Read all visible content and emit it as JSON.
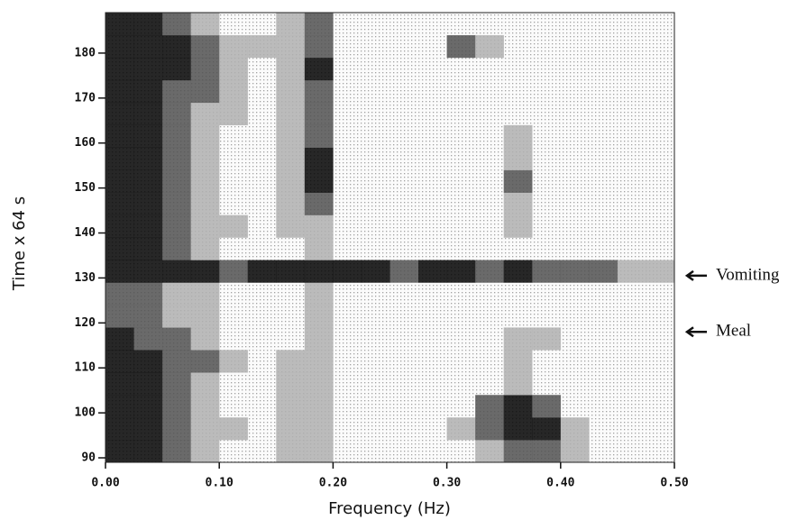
{
  "chart_data": {
    "type": "heatmap",
    "xlabel": "Frequency (Hz)",
    "ylabel": "Time x 64 s",
    "xlim": [
      0,
      0.5
    ],
    "ylim": [
      89,
      189
    ],
    "xticks": [
      {
        "value": 0,
        "label": "0.00"
      },
      {
        "value": 0.1,
        "label": "0.10"
      },
      {
        "value": 0.2,
        "label": "0.20"
      },
      {
        "value": 0.3,
        "label": "0.30"
      },
      {
        "value": 0.4,
        "label": "0.40"
      },
      {
        "value": 0.5,
        "label": "0.50"
      }
    ],
    "yticks": [
      90,
      100,
      110,
      120,
      130,
      140,
      150,
      160,
      170,
      180
    ],
    "x_bins": [
      0,
      0.025,
      0.05,
      0.075,
      0.1,
      0.125,
      0.15,
      0.175,
      0.2,
      0.225,
      0.25,
      0.275,
      0.3,
      0.325,
      0.35,
      0.375,
      0.4,
      0.425,
      0.45,
      0.475,
      0.5
    ],
    "y_bins": [
      89,
      94,
      99,
      104,
      109,
      114,
      119,
      124,
      129,
      134,
      139,
      144,
      149,
      154,
      159,
      164,
      169,
      174,
      179,
      184,
      189
    ],
    "colors": [
      "#f4f4f4",
      "#b4b4b4",
      "#5a5a5a",
      "#101010"
    ],
    "z": [
      [
        3,
        3,
        2,
        1,
        0,
        0,
        1,
        1,
        0,
        0,
        0,
        0,
        0,
        1,
        2,
        2,
        1,
        0,
        0,
        0
      ],
      [
        3,
        3,
        2,
        1,
        1,
        0,
        1,
        1,
        0,
        0,
        0,
        0,
        1,
        2,
        3,
        3,
        1,
        0,
        0,
        0
      ],
      [
        3,
        3,
        2,
        1,
        0,
        0,
        1,
        1,
        0,
        0,
        0,
        0,
        0,
        2,
        3,
        2,
        0,
        0,
        0,
        0
      ],
      [
        3,
        3,
        2,
        1,
        0,
        0,
        1,
        1,
        0,
        0,
        0,
        0,
        0,
        0,
        1,
        0,
        0,
        0,
        0,
        0
      ],
      [
        3,
        3,
        2,
        2,
        1,
        0,
        1,
        1,
        0,
        0,
        0,
        0,
        0,
        0,
        1,
        0,
        0,
        0,
        0,
        0
      ],
      [
        3,
        2,
        2,
        1,
        0,
        0,
        0,
        1,
        0,
        0,
        0,
        0,
        0,
        0,
        1,
        1,
        0,
        0,
        0,
        0
      ],
      [
        2,
        2,
        1,
        1,
        0,
        0,
        0,
        1,
        0,
        0,
        0,
        0,
        0,
        0,
        0,
        0,
        0,
        0,
        0,
        0
      ],
      [
        2,
        2,
        1,
        1,
        0,
        0,
        0,
        1,
        0,
        0,
        0,
        0,
        0,
        0,
        0,
        0,
        0,
        0,
        0,
        0
      ],
      [
        3,
        3,
        3,
        3,
        2,
        3,
        3,
        3,
        3,
        3,
        2,
        3,
        3,
        2,
        3,
        2,
        2,
        2,
        1,
        1
      ],
      [
        3,
        3,
        2,
        1,
        0,
        0,
        0,
        1,
        0,
        0,
        0,
        0,
        0,
        0,
        0,
        0,
        0,
        0,
        0,
        0
      ],
      [
        3,
        3,
        2,
        1,
        1,
        0,
        1,
        1,
        0,
        0,
        0,
        0,
        0,
        0,
        1,
        0,
        0,
        0,
        0,
        0
      ],
      [
        3,
        3,
        2,
        1,
        0,
        0,
        1,
        2,
        0,
        0,
        0,
        0,
        0,
        0,
        1,
        0,
        0,
        0,
        0,
        0
      ],
      [
        3,
        3,
        2,
        1,
        0,
        0,
        1,
        3,
        0,
        0,
        0,
        0,
        0,
        0,
        2,
        0,
        0,
        0,
        0,
        0
      ],
      [
        3,
        3,
        2,
        1,
        0,
        0,
        1,
        3,
        0,
        0,
        0,
        0,
        0,
        0,
        1,
        0,
        0,
        0,
        0,
        0
      ],
      [
        3,
        3,
        2,
        1,
        0,
        0,
        1,
        2,
        0,
        0,
        0,
        0,
        0,
        0,
        1,
        0,
        0,
        0,
        0,
        0
      ],
      [
        3,
        3,
        2,
        1,
        1,
        0,
        1,
        2,
        0,
        0,
        0,
        0,
        0,
        0,
        0,
        0,
        0,
        0,
        0,
        0
      ],
      [
        3,
        3,
        2,
        2,
        1,
        0,
        1,
        2,
        0,
        0,
        0,
        0,
        0,
        0,
        0,
        0,
        0,
        0,
        0,
        0
      ],
      [
        3,
        3,
        3,
        2,
        1,
        0,
        1,
        3,
        0,
        0,
        0,
        0,
        0,
        0,
        0,
        0,
        0,
        0,
        0,
        0
      ],
      [
        3,
        3,
        3,
        2,
        1,
        1,
        1,
        2,
        0,
        0,
        0,
        0,
        2,
        1,
        0,
        0,
        0,
        0,
        0,
        0
      ],
      [
        3,
        3,
        2,
        1,
        0,
        0,
        1,
        2,
        0,
        0,
        0,
        0,
        0,
        0,
        0,
        0,
        0,
        0,
        0,
        0
      ]
    ],
    "annotations": [
      {
        "text": "Vomiting",
        "y": 130.5
      },
      {
        "text": "Meal",
        "y": 118
      }
    ]
  }
}
